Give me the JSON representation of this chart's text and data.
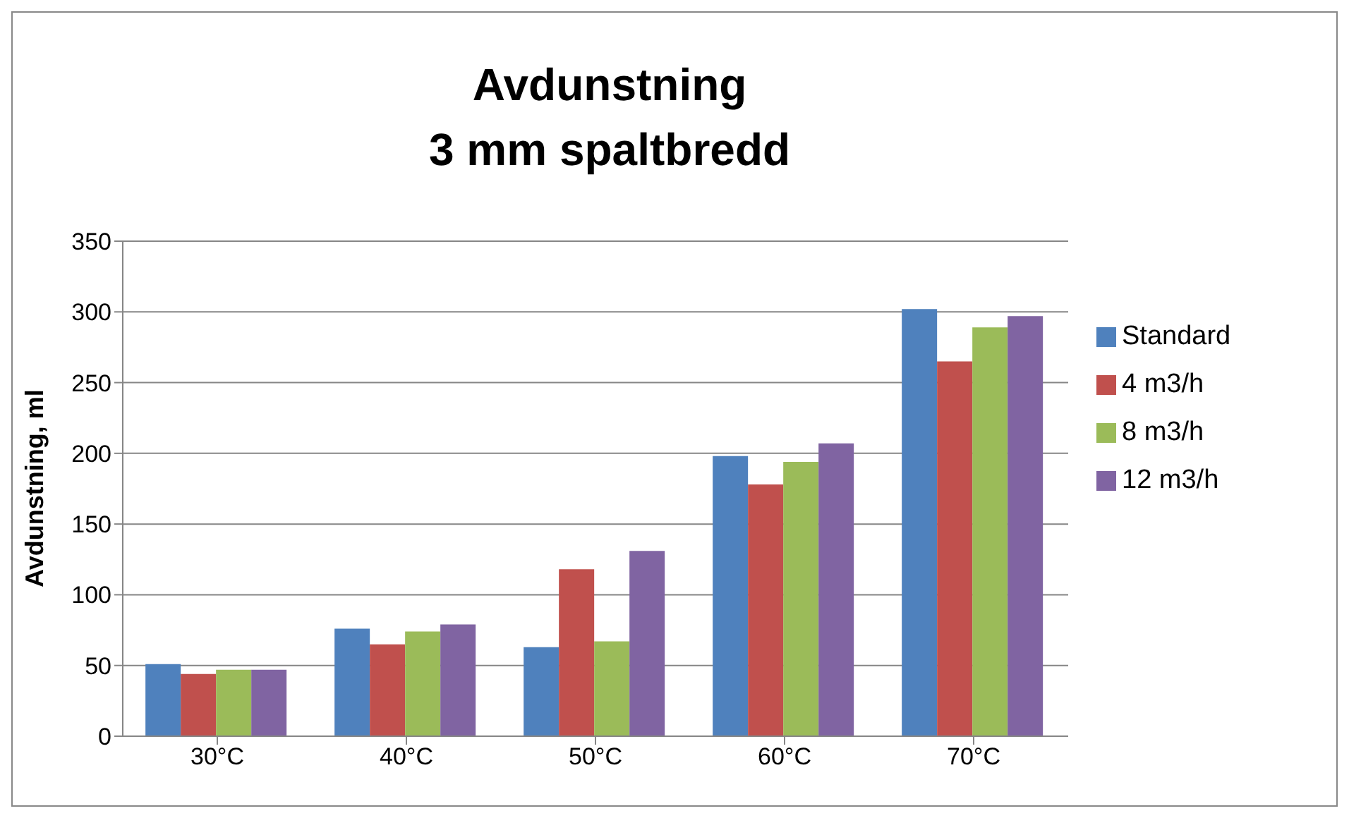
{
  "chart_data": {
    "type": "bar",
    "title": "Avdunstning",
    "subtitle": "3 mm spaltbredd",
    "ylabel": "Avdunstning, ml",
    "categories": [
      "30°C",
      "40°C",
      "50°C",
      "60°C",
      "70°C"
    ],
    "series": [
      {
        "name": "Standard",
        "color": "#4f81bd",
        "values": [
          51,
          76,
          63,
          198,
          302
        ]
      },
      {
        "name": "4 m3/h",
        "color": "#c0504d",
        "values": [
          44,
          65,
          118,
          178,
          265
        ]
      },
      {
        "name": "8 m3/h",
        "color": "#9bbb59",
        "values": [
          47,
          74,
          67,
          194,
          289
        ]
      },
      {
        "name": "12 m3/h",
        "color": "#8064a2",
        "values": [
          47,
          79,
          131,
          207,
          297
        ]
      }
    ],
    "ylim": [
      0,
      350
    ],
    "yticks": [
      0,
      50,
      100,
      150,
      200,
      250,
      300,
      350
    ],
    "grid": "y",
    "legend": "right"
  }
}
